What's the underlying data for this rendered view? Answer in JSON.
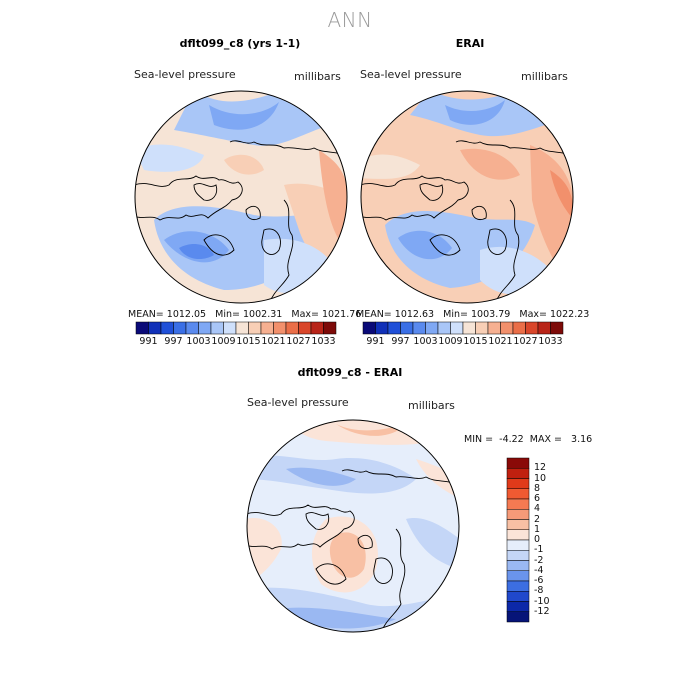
{
  "title": "ANN",
  "panels": [
    {
      "id": "model",
      "title": "dflt099_c8 (yrs 1-1)",
      "field": "Sea-level pressure",
      "units": "millibars",
      "mean_label": "MEAN=",
      "mean": "1012.05",
      "min_label": "Min=",
      "min": "1002.31",
      "max_label": "Max=",
      "max": "1021.76"
    },
    {
      "id": "obs",
      "title": "ERAI",
      "field": "Sea-level pressure",
      "units": "millibars",
      "mean_label": "MEAN=",
      "mean": "1012.63",
      "min_label": "Min=",
      "min": "1003.79",
      "max_label": "Max=",
      "max": "1022.23"
    }
  ],
  "diff_panel": {
    "title": "dflt099_c8 - ERAI",
    "field": "Sea-level pressure",
    "units": "millibars",
    "min_label": "MIN =",
    "min": "-4.22",
    "max_label": "MAX =",
    "max": "3.16"
  },
  "chart_data": [
    {
      "type": "heatmap",
      "projection": "north-polar-stereographic",
      "title": "dflt099_c8 (yrs 1-1)",
      "colorbar": {
        "orientation": "horizontal",
        "tick_labels": [
          "991",
          "997",
          "1003",
          "1009",
          "1015",
          "1021",
          "1027",
          "1033"
        ],
        "colors": [
          "#0a0a78",
          "#1030b8",
          "#2050d8",
          "#3a6fe6",
          "#5a8aee",
          "#7fa8f4",
          "#a9c6f7",
          "#cfe0fb",
          "#f6e4d6",
          "#f8cfb6",
          "#f6b091",
          "#f2906c",
          "#ea6e48",
          "#d9462a",
          "#b82418",
          "#7d0a08"
        ]
      },
      "stats": {
        "mean": 1012.05,
        "min": 1002.31,
        "max": 1021.76
      }
    },
    {
      "type": "heatmap",
      "projection": "north-polar-stereographic",
      "title": "ERAI",
      "colorbar": {
        "orientation": "horizontal",
        "tick_labels": [
          "991",
          "997",
          "1003",
          "1009",
          "1015",
          "1021",
          "1027",
          "1033"
        ],
        "colors": [
          "#0a0a78",
          "#1030b8",
          "#2050d8",
          "#3a6fe6",
          "#5a8aee",
          "#7fa8f4",
          "#a9c6f7",
          "#cfe0fb",
          "#f6e4d6",
          "#f8cfb6",
          "#f6b091",
          "#f2906c",
          "#ea6e48",
          "#d9462a",
          "#b82418",
          "#7d0a08"
        ]
      },
      "stats": {
        "mean": 1012.63,
        "min": 1003.79,
        "max": 1022.23
      }
    },
    {
      "type": "heatmap",
      "projection": "north-polar-stereographic",
      "title": "dflt099_c8 - ERAI",
      "colorbar": {
        "orientation": "vertical",
        "tick_labels": [
          "12",
          "10",
          "8",
          "6",
          "4",
          "2",
          "1",
          "0",
          "-1",
          "-2",
          "-4",
          "-6",
          "-8",
          "-10",
          "-12"
        ],
        "colors": [
          "#8a0a08",
          "#c0200f",
          "#e03a1a",
          "#f05a32",
          "#f57a52",
          "#f69a78",
          "#f8c0a4",
          "#fbe4d8",
          "#e6eefb",
          "#c4d6f7",
          "#9ab8f2",
          "#6a94ec",
          "#3c6ee2",
          "#2048cc",
          "#0c28a8",
          "#061478"
        ]
      },
      "stats": {
        "min": -4.22,
        "max": 3.16
      }
    }
  ]
}
